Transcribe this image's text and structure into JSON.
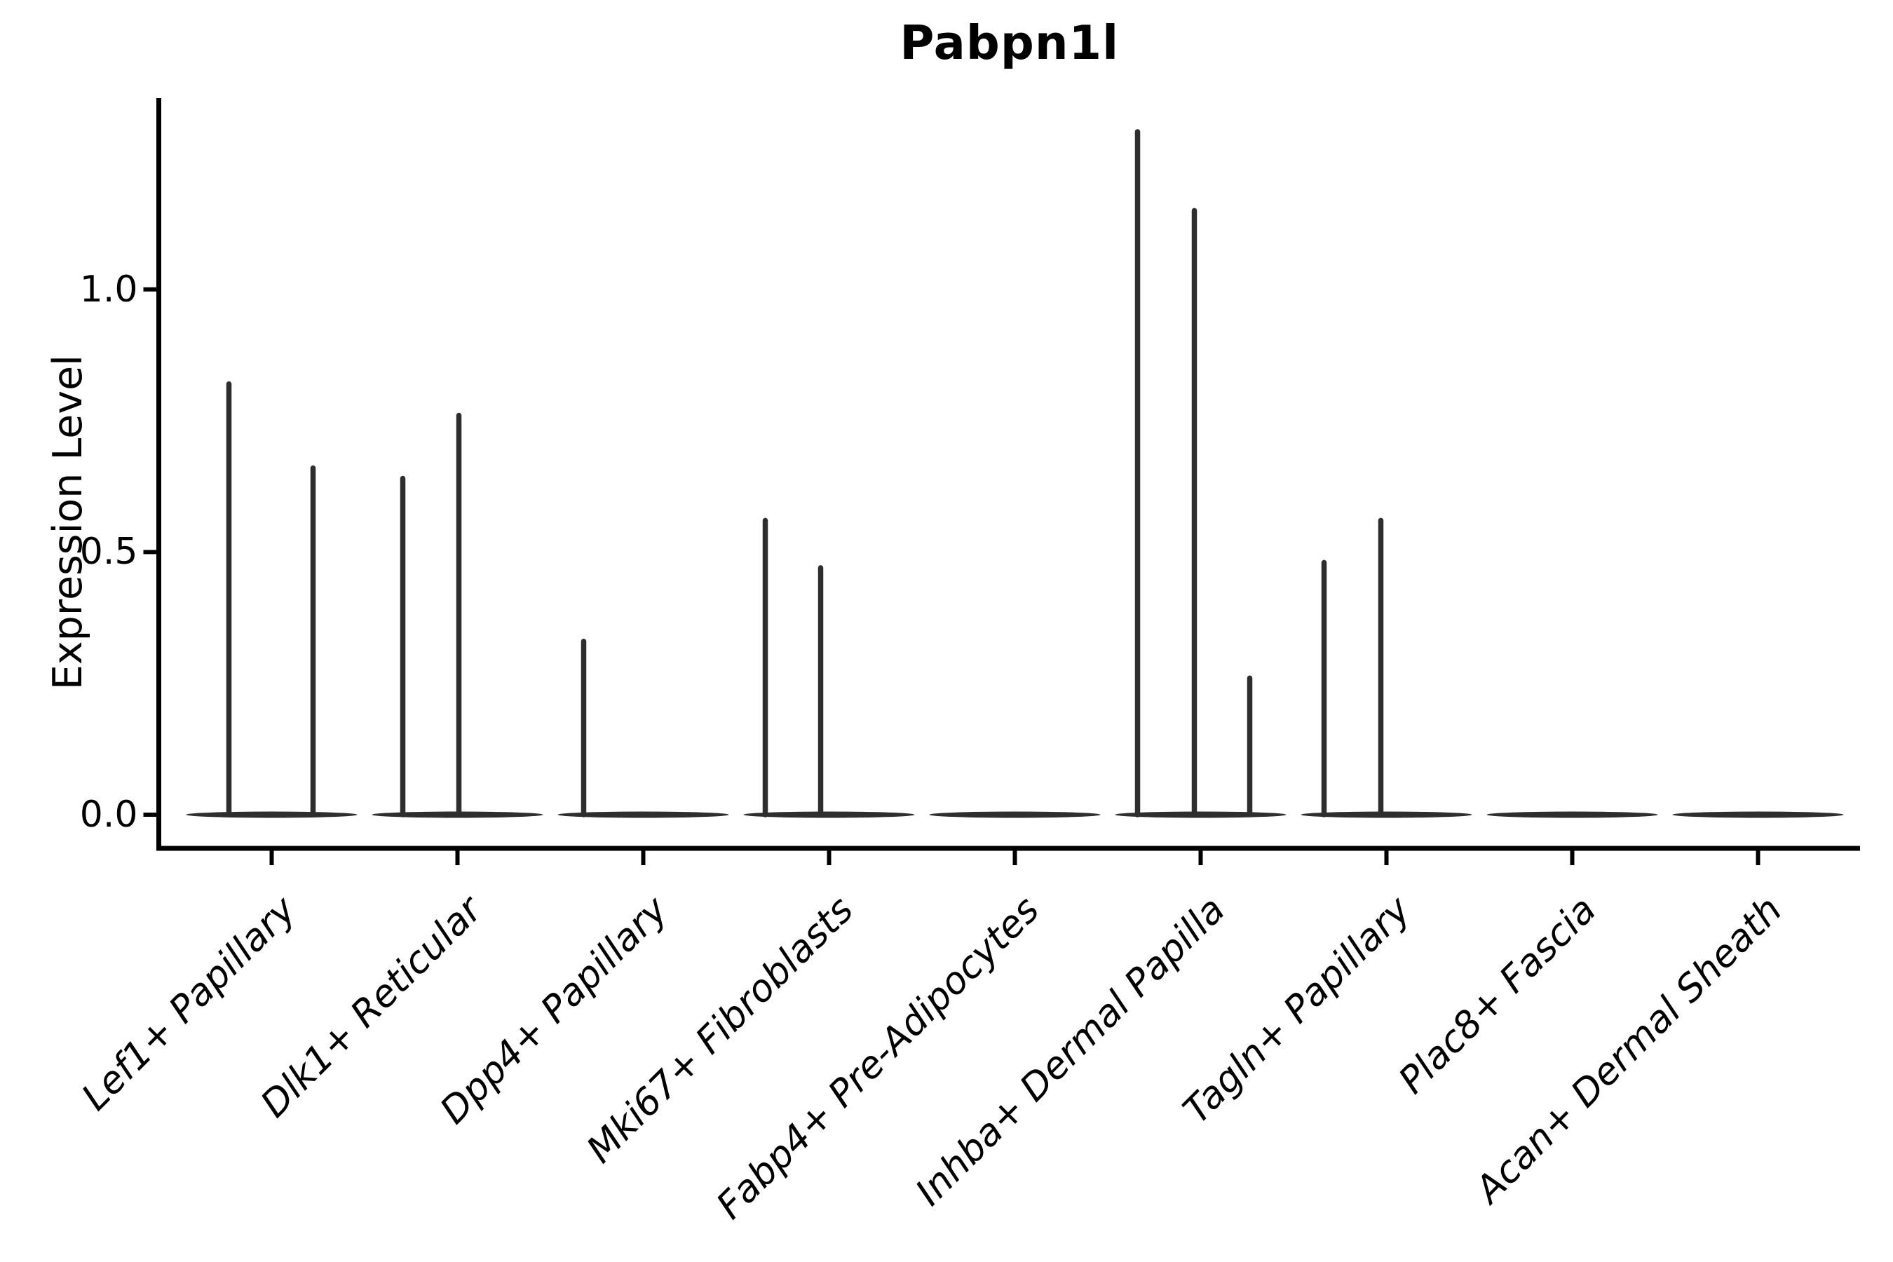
{
  "chart_data": {
    "type": "violin",
    "title": "Pabpn1l",
    "xlabel": "",
    "ylabel": "Expression Level",
    "ylim": [
      -0.064,
      1.364
    ],
    "yticks": [
      {
        "label": "0.0",
        "value": 0.0
      },
      {
        "label": "0.5",
        "value": 0.5
      },
      {
        "label": "1.0",
        "value": 1.0
      }
    ],
    "grid": false,
    "legend": null,
    "categories": [
      "Lef1+ Papillary",
      "Dlk1+ Reticular",
      "Dpp4+ Papillary",
      "Mki67+ Fibroblasts",
      "Fabp4+ Pre-Adipocytes",
      "Inhba+ Dermal Papilla",
      "Tagln+ Papillary",
      "Plac8+ Fascia",
      "Acan+ Dermal Sheath"
    ],
    "series": [
      {
        "category": "Lef1+ Papillary",
        "spikes": [
          {
            "dx": -61,
            "max": 0.82
          },
          {
            "dx": 59,
            "max": 0.66
          }
        ]
      },
      {
        "category": "Dlk1+ Reticular",
        "spikes": [
          {
            "dx": -78,
            "max": 0.64
          },
          {
            "dx": 2,
            "max": 0.76
          }
        ]
      },
      {
        "category": "Dpp4+ Papillary",
        "spikes": [
          {
            "dx": -85,
            "max": 0.33
          }
        ]
      },
      {
        "category": "Mki67+ Fibroblasts",
        "spikes": [
          {
            "dx": -91,
            "max": 0.56
          },
          {
            "dx": -12,
            "max": 0.47
          }
        ]
      },
      {
        "category": "Fabp4+ Pre-Adipocytes",
        "spikes": []
      },
      {
        "category": "Inhba+ Dermal Papilla",
        "spikes": [
          {
            "dx": -90,
            "max": 1.3
          },
          {
            "dx": -9,
            "max": 1.15
          },
          {
            "dx": 70,
            "max": 0.26
          }
        ]
      },
      {
        "category": "Tagln+ Papillary",
        "spikes": [
          {
            "dx": -89,
            "max": 0.48
          },
          {
            "dx": -8,
            "max": 0.56
          }
        ]
      },
      {
        "category": "Plac8+ Fascia",
        "spikes": []
      },
      {
        "category": "Acan+ Dermal Sheath",
        "spikes": []
      }
    ]
  },
  "colors": {
    "violin": "#2e2e2e",
    "axis": "#000000",
    "text": "#000000",
    "background": "#ffffff"
  }
}
